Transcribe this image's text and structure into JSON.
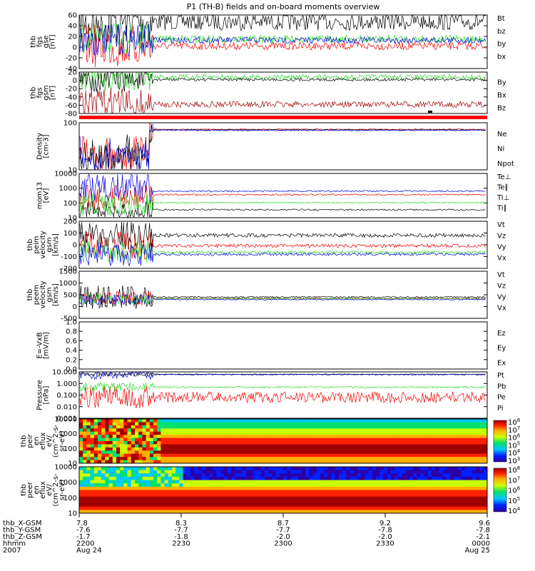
{
  "title": "P1 (TH-B) fields and on-board moments overview",
  "colors": {
    "black": "#000000",
    "red": "#ee0000",
    "green": "#22dd22",
    "blue": "#0000dd",
    "dred": "#a00000"
  },
  "chart_data": [
    {
      "type": "line",
      "panel": "fgs_gse",
      "ylabel": [
        "thb",
        "fgs",
        "gse",
        "[nT]"
      ],
      "yticks": [
        "60",
        "40",
        "20",
        "0",
        "-20",
        "-40"
      ],
      "ylim": [
        -45,
        62
      ],
      "series": [
        {
          "name": "Bt",
          "color": "#000000",
          "base": 15
        },
        {
          "name": "bz",
          "color": "#ee0000",
          "base": -8
        },
        {
          "name": "by",
          "color": "#22dd22",
          "base": 2
        },
        {
          "name": "bx",
          "color": "#0000dd",
          "base": 2
        }
      ]
    },
    {
      "type": "line",
      "panel": "fgs_gsm",
      "ylabel": [
        "thb",
        "fgs",
        "gsm",
        "[nT]"
      ],
      "yticks": [
        "20",
        "0",
        "-20",
        "-40",
        "-60",
        "-80"
      ],
      "ylim": [
        -90,
        25
      ],
      "series": [
        {
          "name": "By",
          "color": "#22dd22",
          "base": 5
        },
        {
          "name": "Bx",
          "color": "#000000",
          "base": -2
        },
        {
          "name": "Bz",
          "color": "#a00000",
          "base": -65
        }
      ]
    },
    {
      "type": "line",
      "panel": "density",
      "ylabel": [
        "Density",
        "[cm-3]"
      ],
      "yticks": [
        "100",
        "10"
      ],
      "log": true,
      "series": [
        {
          "name": "Ne",
          "color": "#ee0000"
        },
        {
          "name": "Ni",
          "color": "#000000"
        },
        {
          "name": "Npot",
          "color": "#0000dd"
        }
      ]
    },
    {
      "type": "line",
      "panel": "temperature",
      "ylabel": [
        "mom13",
        "[eV]"
      ],
      "yticks": [
        "10000",
        "1000",
        "100",
        "10"
      ],
      "log": true,
      "series": [
        {
          "name": "Te⊥",
          "color": "#ee0000"
        },
        {
          "name": "Te∥",
          "color": "#000000"
        },
        {
          "name": "Ti⊥",
          "color": "#0000dd"
        },
        {
          "name": "Ti∥",
          "color": "#22dd22"
        }
      ]
    },
    {
      "type": "line",
      "panel": "peim_velocity",
      "ylabel": [
        "thb",
        "peim",
        "velocity",
        "gsm",
        "[km/s]"
      ],
      "yticks": [
        "200",
        "100",
        "0",
        "-100",
        "-200"
      ],
      "ylim": [
        -200,
        200
      ],
      "series": [
        {
          "name": "Vt",
          "color": "#000000"
        },
        {
          "name": "Vz",
          "color": "#ee0000"
        },
        {
          "name": "Vy",
          "color": "#22dd22"
        },
        {
          "name": "Vx",
          "color": "#0000dd"
        }
      ]
    },
    {
      "type": "line",
      "panel": "peem_velocity",
      "ylabel": [
        "thb",
        "peem",
        "velocity",
        "gsm",
        "[km/s]"
      ],
      "yticks": [
        "1500",
        "1000",
        "500",
        "0",
        "-500"
      ],
      "ylim": [
        -600,
        1500
      ],
      "series": [
        {
          "name": "Vt",
          "color": "#000000"
        },
        {
          "name": "Vz",
          "color": "#ee0000"
        },
        {
          "name": "Vy",
          "color": "#22dd22"
        },
        {
          "name": "Vx",
          "color": "#0000dd"
        }
      ]
    },
    {
      "type": "line",
      "panel": "efield",
      "ylabel": [
        "E=-VxB",
        "[mV/m]"
      ],
      "yticks": [
        "1.0",
        "0.8",
        "0.6",
        "0.4",
        "0.2",
        "0.0"
      ],
      "ylim": [
        0,
        1
      ],
      "series": [
        {
          "name": "Ez",
          "color": "#ee0000"
        },
        {
          "name": "Ey",
          "color": "#22dd22"
        },
        {
          "name": "Ex",
          "color": "#0000dd"
        }
      ]
    },
    {
      "type": "line",
      "panel": "pressure",
      "ylabel": [
        "Pressure",
        "[nPa]"
      ],
      "yticks": [
        "10.000",
        "1.000",
        "0.100",
        "0.010",
        "0.001"
      ],
      "log": true,
      "series": [
        {
          "name": "Pt",
          "color": "#000000"
        },
        {
          "name": "Pb",
          "color": "#ee0000"
        },
        {
          "name": "Pe",
          "color": "#22dd22"
        },
        {
          "name": "Pi",
          "color": "#0000dd"
        }
      ]
    },
    {
      "type": "heatmap",
      "panel": "peir_en_eflux",
      "ylabel": [
        "thb",
        "peir",
        "en",
        "eflux",
        "eV/",
        "(cm^2-s-",
        "sr-eV)"
      ],
      "yticks": [
        "10000",
        "1000",
        "100",
        "10"
      ],
      "colorbar": [
        "10^8",
        "10^7",
        "10^6",
        "10^5",
        "10^4",
        "10^3"
      ]
    },
    {
      "type": "heatmap",
      "panel": "peer_en_eflux",
      "ylabel": [
        "thb",
        "peer",
        "en",
        "eflux",
        "eV/",
        "(cm^2-s-",
        "sr-eV)"
      ],
      "yticks": [
        "10000",
        "1000",
        "100",
        "10"
      ],
      "colorbar": [
        "10^8",
        "10^7",
        "10^6",
        "10^5",
        "10^4"
      ]
    }
  ],
  "xaxis": {
    "row_labels": [
      "thb_X-GSM",
      "thb_Y-GSM",
      "thb_Z-GSM",
      "hhmm",
      "2007"
    ],
    "ticks": [
      {
        "vals": [
          "7.8",
          "-7.6",
          "-1.7",
          "2200",
          "Aug 24"
        ]
      },
      {
        "vals": [
          "8.3",
          "-7.7",
          "-1.8",
          "2230",
          ""
        ]
      },
      {
        "vals": [
          "8.7",
          "-7.7",
          "-2.0",
          "2300",
          ""
        ]
      },
      {
        "vals": [
          "9.2",
          "-7.8",
          "-2.0",
          "2330",
          ""
        ]
      },
      {
        "vals": [
          "9.6",
          "-7.8",
          "-2.1",
          "0000",
          "Aug 25"
        ]
      }
    ]
  }
}
